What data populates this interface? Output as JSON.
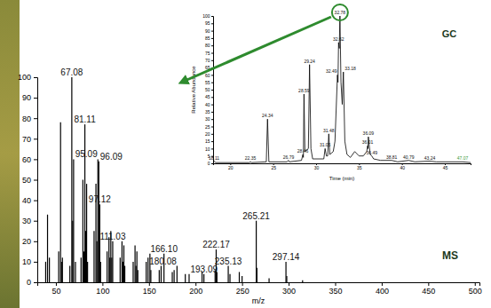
{
  "chart_data": [
    {
      "type": "bar",
      "title": "MS",
      "x_label": "m/z",
      "color": "#000000",
      "x": [
        39,
        41,
        43,
        53,
        55,
        56,
        57,
        65,
        67.08,
        68,
        69,
        71,
        77,
        79,
        80,
        81.11,
        82,
        83,
        84,
        91,
        93,
        94,
        95.09,
        96.09,
        97.12,
        98,
        105,
        107,
        108,
        109,
        110,
        111.03,
        119,
        121,
        122,
        123,
        124,
        133,
        135,
        136,
        137,
        138,
        147,
        149,
        151,
        152,
        161,
        163,
        166.1,
        175,
        177,
        180.08,
        189,
        193.09,
        207,
        209,
        221,
        222.17,
        223,
        235.13,
        237,
        247,
        250,
        265.21,
        266,
        279,
        297.14,
        298,
        315
      ],
      "values": [
        10,
        33,
        12,
        15,
        78,
        10,
        12,
        8,
        100,
        30,
        60,
        10,
        12,
        50,
        15,
        77,
        25,
        48,
        10,
        25,
        48,
        20,
        60,
        59,
        38,
        10,
        15,
        22,
        12,
        25,
        12,
        20,
        12,
        20,
        10,
        18,
        8,
        10,
        18,
        8,
        15,
        6,
        10,
        12,
        14,
        6,
        6,
        8,
        14,
        5,
        6,
        8,
        4,
        4,
        5,
        4,
        6,
        16,
        5,
        8,
        4,
        5,
        3,
        30,
        7,
        2,
        10,
        3,
        1
      ],
      "xlim": [
        30,
        505
      ],
      "xticks": [
        50,
        100,
        150,
        200,
        250,
        300,
        350,
        400,
        450,
        500
      ],
      "ylim": [
        0,
        100
      ],
      "yticks": [
        0,
        10,
        20,
        30,
        40,
        50,
        60,
        70,
        80,
        90,
        100
      ],
      "annotations": [
        {
          "text": "67.08",
          "x": 67.08,
          "y": 100
        },
        {
          "text": "81.11",
          "x": 81.11,
          "y": 77
        },
        {
          "text": "95.09",
          "x": 95.09,
          "y": 60
        },
        {
          "text": "96.09",
          "x": 96.09,
          "y": 59
        },
        {
          "text": "97.12",
          "x": 97.12,
          "y": 38
        },
        {
          "text": "111.03",
          "x": 111.03,
          "y": 20
        },
        {
          "text": "166.10",
          "x": 166.1,
          "y": 14
        },
        {
          "text": "180.08",
          "x": 180.08,
          "y": 8
        },
        {
          "text": "193.09",
          "x": 193.09,
          "y": 4
        },
        {
          "text": "222.17",
          "x": 222.17,
          "y": 16
        },
        {
          "text": "235.13",
          "x": 235.13,
          "y": 8
        },
        {
          "text": "265.21",
          "x": 265.21,
          "y": 30
        },
        {
          "text": "297.14",
          "x": 297.14,
          "y": 10
        }
      ]
    },
    {
      "type": "line",
      "title": "GC",
      "x_label": "Time (min)",
      "y_label": "Relative Abundance",
      "color": "#000000",
      "x": [
        18.0,
        18.11,
        18.3,
        22.2,
        22.35,
        22.5,
        24.2,
        24.34,
        24.5,
        26.6,
        26.79,
        26.9,
        28.3,
        28.46,
        28.52,
        28.59,
        28.7,
        29.1,
        29.24,
        29.4,
        29.6,
        30.9,
        31.05,
        31.2,
        31.35,
        31.48,
        31.6,
        32.0,
        32.2,
        32.49,
        32.55,
        32.62,
        32.7,
        32.78,
        32.9,
        33.05,
        33.18,
        33.35,
        33.6,
        34.0,
        34.5,
        35.0,
        35.5,
        35.9,
        36.01,
        36.05,
        36.09,
        36.3,
        36.49,
        36.7,
        37.5,
        38.81,
        39.5,
        40.79,
        41.5,
        43.24,
        44.0,
        47.07,
        48.0
      ],
      "values": [
        0.5,
        1.5,
        0.5,
        0.5,
        1,
        0.5,
        1,
        30,
        1,
        1,
        2,
        1,
        2,
        6,
        4,
        47,
        8,
        10,
        67,
        10,
        3,
        3,
        10,
        5,
        5,
        20,
        6,
        8,
        15,
        60,
        55,
        82,
        78,
        100,
        55,
        40,
        62,
        15,
        6,
        4,
        8,
        5,
        5,
        8,
        12,
        10,
        18,
        6,
        5,
        3,
        2,
        2,
        1,
        2,
        1,
        1.5,
        1,
        1,
        0.5
      ],
      "xlim": [
        18,
        48
      ],
      "xticks": [
        20,
        25,
        30,
        35,
        40,
        45
      ],
      "ylim": [
        0,
        100
      ],
      "yticks": [
        0,
        5,
        10,
        15,
        20,
        25,
        30,
        35,
        40,
        45,
        50,
        55,
        60,
        65,
        70,
        75,
        80,
        85,
        90,
        95,
        100
      ],
      "annotations": [
        {
          "text": "18.11",
          "x": 18.11,
          "y": 1.5
        },
        {
          "text": "22.35",
          "x": 22.35,
          "y": 1
        },
        {
          "text": "24.34",
          "x": 24.34,
          "y": 30
        },
        {
          "text": "26.79",
          "x": 26.79,
          "y": 2
        },
        {
          "text": "28.46",
          "x": 28.46,
          "y": 6
        },
        {
          "text": "28.59",
          "x": 28.59,
          "y": 47
        },
        {
          "text": "29.24",
          "x": 29.24,
          "y": 67
        },
        {
          "text": "31.05",
          "x": 31.05,
          "y": 10
        },
        {
          "text": "31.48",
          "x": 31.48,
          "y": 20
        },
        {
          "text": "32.49",
          "x": 32.49,
          "y": 60
        },
        {
          "text": "32.62",
          "x": 32.62,
          "y": 82
        },
        {
          "text": "32.78",
          "x": 32.78,
          "y": 100
        },
        {
          "text": "33.18",
          "x": 33.18,
          "y": 62
        },
        {
          "text": "36.01",
          "x": 36.01,
          "y": 12
        },
        {
          "text": "36.09",
          "x": 36.09,
          "y": 18
        },
        {
          "text": "36.49",
          "x": 36.49,
          "y": 5
        },
        {
          "text": "38.81",
          "x": 38.81,
          "y": 2
        },
        {
          "text": "40.79",
          "x": 40.79,
          "y": 2
        },
        {
          "text": "43.24",
          "x": 43.24,
          "y": 1.5
        },
        {
          "text": "47.07",
          "x": 47.07,
          "y": 1,
          "color": "#3a9a3a"
        }
      ]
    }
  ]
}
